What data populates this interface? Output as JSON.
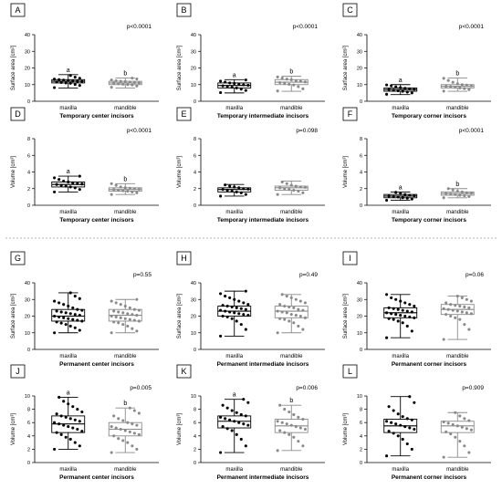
{
  "chart_data": [
    {
      "type": "box",
      "panel": "A",
      "xlabel": "Temporary center incisors",
      "ylabel": "Surface area [cm²]",
      "ylim": [
        0,
        40
      ],
      "yticks": [
        0,
        10,
        20,
        30,
        40
      ],
      "p_value": "p<0.0001",
      "categories": [
        "maxilla",
        "mandible"
      ],
      "series": [
        {
          "category": "maxilla",
          "letter": "a",
          "color": "#000000",
          "min": 8,
          "q1": 11,
          "median": 12,
          "q3": 13,
          "max": 16,
          "points": [
            8.2,
            9.5,
            10.1,
            10.8,
            11,
            11.3,
            11.6,
            11.9,
            12,
            12.2,
            12.4,
            12.7,
            13,
            13.3,
            13.8,
            14.5,
            15.5
          ]
        },
        {
          "category": "mandible",
          "letter": "b",
          "color": "#8a8a8a",
          "min": 8,
          "q1": 10,
          "median": 11,
          "q3": 12,
          "max": 14,
          "points": [
            8.4,
            9.2,
            9.8,
            10,
            10.3,
            10.6,
            10.9,
            11,
            11.2,
            11.5,
            11.8,
            12,
            12.3,
            12.8,
            13.4,
            13.9
          ]
        }
      ]
    },
    {
      "type": "box",
      "panel": "B",
      "xlabel": "Temporary intermediate incisors",
      "ylabel": "Surface area [cm²]",
      "ylim": [
        0,
        40
      ],
      "yticks": [
        0,
        10,
        20,
        30,
        40
      ],
      "p_value": "p<0.0001",
      "categories": [
        "maxilla",
        "mandible"
      ],
      "series": [
        {
          "category": "maxilla",
          "letter": "a",
          "color": "#000000",
          "min": 5,
          "q1": 8,
          "median": 9.5,
          "q3": 11,
          "max": 13,
          "points": [
            5.2,
            6.5,
            7.3,
            8,
            8.4,
            8.9,
            9.3,
            9.6,
            9.9,
            10.3,
            10.7,
            11,
            11.5,
            12.1,
            12.8
          ]
        },
        {
          "category": "mandible",
          "letter": "b",
          "color": "#8a8a8a",
          "min": 6,
          "q1": 10,
          "median": 11.5,
          "q3": 13,
          "max": 15,
          "points": [
            6.2,
            7.5,
            8.8,
            9.8,
            10.2,
            10.8,
            11.2,
            11.6,
            12,
            12.4,
            12.9,
            13.3,
            13.9,
            14.6
          ]
        }
      ]
    },
    {
      "type": "box",
      "panel": "C",
      "xlabel": "Temporary corner incisors",
      "ylabel": "Surface area [cm²]",
      "ylim": [
        0,
        40
      ],
      "yticks": [
        0,
        10,
        20,
        30,
        40
      ],
      "p_value": "p<0.0001",
      "categories": [
        "maxilla",
        "mandible"
      ],
      "series": [
        {
          "category": "maxilla",
          "letter": "a",
          "color": "#000000",
          "min": 4,
          "q1": 6,
          "median": 7,
          "q3": 8,
          "max": 10,
          "points": [
            4.2,
            5,
            5.5,
            6,
            6.3,
            6.7,
            7,
            7.2,
            7.5,
            7.8,
            8.2,
            8.7,
            9.3,
            9.8
          ]
        },
        {
          "category": "mandible",
          "letter": "b",
          "color": "#8a8a8a",
          "min": 6,
          "q1": 8,
          "median": 9,
          "q3": 10,
          "max": 14,
          "points": [
            6.1,
            7,
            7.6,
            8,
            8.4,
            8.8,
            9,
            9.3,
            9.7,
            10,
            10.5,
            11.4,
            12.5,
            13.8
          ]
        }
      ]
    },
    {
      "type": "box",
      "panel": "D",
      "xlabel": "Temporary center incisors",
      "ylabel": "Volume [cm³]",
      "ylim": [
        0,
        8
      ],
      "yticks": [
        0,
        2,
        4,
        6,
        8
      ],
      "p_value": "p<0.0001",
      "categories": [
        "maxilla",
        "mandible"
      ],
      "series": [
        {
          "category": "maxilla",
          "letter": "a",
          "color": "#000000",
          "min": 1.6,
          "q1": 2.2,
          "median": 2.5,
          "q3": 2.8,
          "max": 3.5,
          "points": [
            1.6,
            1.9,
            2.1,
            2.2,
            2.3,
            2.4,
            2.5,
            2.55,
            2.6,
            2.7,
            2.8,
            2.9,
            3.1,
            3.3,
            3.5
          ]
        },
        {
          "category": "mandible",
          "letter": "b",
          "color": "#8a8a8a",
          "min": 1.3,
          "q1": 1.7,
          "median": 1.9,
          "q3": 2.1,
          "max": 2.6,
          "points": [
            1.3,
            1.5,
            1.6,
            1.7,
            1.75,
            1.8,
            1.9,
            1.95,
            2,
            2.05,
            2.1,
            2.2,
            2.4,
            2.6
          ]
        }
      ]
    },
    {
      "type": "box",
      "panel": "E",
      "xlabel": "Temporary intermediate incisors",
      "ylabel": "Volume [cm³]",
      "ylim": [
        0,
        8
      ],
      "yticks": [
        0,
        2,
        4,
        6,
        8
      ],
      "p_value": "p=0.098",
      "categories": [
        "maxilla",
        "mandible"
      ],
      "series": [
        {
          "category": "maxilla",
          "letter": "",
          "color": "#000000",
          "min": 1.1,
          "q1": 1.6,
          "median": 1.9,
          "q3": 2.1,
          "max": 2.5,
          "points": [
            1.1,
            1.3,
            1.5,
            1.6,
            1.7,
            1.8,
            1.9,
            1.95,
            2,
            2.1,
            2.2,
            2.3,
            2.45
          ]
        },
        {
          "category": "mandible",
          "letter": "",
          "color": "#8a8a8a",
          "min": 1.3,
          "q1": 1.8,
          "median": 2.1,
          "q3": 2.3,
          "max": 2.9,
          "points": [
            1.3,
            1.5,
            1.7,
            1.8,
            1.9,
            2,
            2.1,
            2.15,
            2.2,
            2.3,
            2.4,
            2.6,
            2.8
          ]
        }
      ]
    },
    {
      "type": "box",
      "panel": "F",
      "xlabel": "Temporary corner incisors",
      "ylabel": "Volume [cm³]",
      "ylim": [
        0,
        8
      ],
      "yticks": [
        0,
        2,
        4,
        6,
        8
      ],
      "p_value": "p<0.0001",
      "categories": [
        "maxilla",
        "mandible"
      ],
      "series": [
        {
          "category": "maxilla",
          "letter": "a",
          "color": "#000000",
          "min": 0.6,
          "q1": 0.9,
          "median": 1.1,
          "q3": 1.3,
          "max": 1.6,
          "points": [
            0.6,
            0.75,
            0.85,
            0.9,
            1,
            1.05,
            1.1,
            1.15,
            1.2,
            1.3,
            1.4,
            1.55
          ]
        },
        {
          "category": "mandible",
          "letter": "b",
          "color": "#8a8a8a",
          "min": 0.9,
          "q1": 1.2,
          "median": 1.4,
          "q3": 1.6,
          "max": 2,
          "points": [
            0.9,
            1.05,
            1.15,
            1.2,
            1.3,
            1.35,
            1.4,
            1.45,
            1.5,
            1.6,
            1.7,
            1.85,
            2
          ]
        }
      ]
    },
    {
      "type": "box",
      "panel": "G",
      "xlabel": "Permanent center incisors",
      "ylabel": "Surface area [cm²]",
      "ylim": [
        0,
        40
      ],
      "yticks": [
        0,
        10,
        20,
        30,
        40
      ],
      "p_value": "p=0.55",
      "categories": [
        "maxilla",
        "mandible"
      ],
      "series": [
        {
          "category": "maxilla",
          "letter": "",
          "color": "#000000",
          "min": 10,
          "q1": 17,
          "median": 20,
          "q3": 24,
          "max": 34,
          "points": [
            10,
            11.5,
            13,
            14,
            15,
            15.8,
            16.5,
            17,
            17.5,
            18,
            18.5,
            19,
            19.5,
            20,
            20.5,
            21,
            21.5,
            22,
            22.5,
            23,
            23.5,
            24,
            25,
            26,
            27,
            28,
            29,
            30.5,
            32,
            34
          ]
        },
        {
          "category": "mandible",
          "letter": "",
          "color": "#8a8a8a",
          "min": 10,
          "q1": 17,
          "median": 20.5,
          "q3": 24,
          "max": 30,
          "points": [
            10,
            11,
            12.5,
            14,
            15,
            16,
            16.5,
            17,
            17.5,
            18,
            18.5,
            19,
            19.5,
            20,
            20.5,
            21,
            21.5,
            22,
            22.5,
            23,
            23.5,
            24,
            25,
            26,
            27,
            28,
            29,
            30
          ]
        }
      ]
    },
    {
      "type": "box",
      "panel": "H",
      "xlabel": "Permanent intermediate incisors",
      "ylabel": "Surface area [cm²]",
      "ylim": [
        0,
        40
      ],
      "yticks": [
        0,
        10,
        20,
        30,
        40
      ],
      "p_value": "p=0.49",
      "categories": [
        "maxilla",
        "mandible"
      ],
      "series": [
        {
          "category": "maxilla",
          "letter": "",
          "color": "#000000",
          "min": 8,
          "q1": 20,
          "median": 23,
          "q3": 26,
          "max": 35,
          "points": [
            8,
            12,
            15,
            17,
            18.5,
            19.5,
            20,
            20.5,
            21,
            21.5,
            22,
            22.5,
            23,
            23.5,
            24,
            24.5,
            25,
            25.5,
            26,
            26.5,
            27,
            28,
            29,
            30,
            31,
            32,
            33.5,
            35
          ]
        },
        {
          "category": "mandible",
          "letter": "",
          "color": "#8a8a8a",
          "min": 10,
          "q1": 19,
          "median": 23,
          "q3": 26,
          "max": 33,
          "points": [
            10,
            12,
            14,
            16,
            17,
            18,
            18.5,
            19,
            20,
            20.5,
            21,
            22,
            22.5,
            23,
            23.5,
            24,
            25,
            25.5,
            26,
            27,
            28,
            29,
            30,
            31,
            32,
            33
          ]
        }
      ]
    },
    {
      "type": "box",
      "panel": "I",
      "xlabel": "Permanent corner incisors",
      "ylabel": "Surface area [cm²]",
      "ylim": [
        0,
        40
      ],
      "yticks": [
        0,
        10,
        20,
        30,
        40
      ],
      "p_value": "p=0.06",
      "categories": [
        "maxilla",
        "mandible"
      ],
      "series": [
        {
          "category": "maxilla",
          "letter": "",
          "color": "#000000",
          "min": 7,
          "q1": 19,
          "median": 22,
          "q3": 25,
          "max": 33,
          "points": [
            7,
            11,
            14,
            16,
            17,
            18,
            18.5,
            19,
            19.5,
            20,
            20.5,
            21,
            21.5,
            22,
            22.5,
            23,
            23.5,
            24,
            24.5,
            25,
            26,
            27,
            28,
            29,
            30,
            31,
            33
          ]
        },
        {
          "category": "mandible",
          "letter": "",
          "color": "#8a8a8a",
          "min": 6,
          "q1": 21,
          "median": 24,
          "q3": 27,
          "max": 32,
          "points": [
            6,
            12,
            15,
            18,
            19,
            20,
            21,
            21.5,
            22,
            22.5,
            23,
            23.5,
            24,
            24.5,
            25,
            25.5,
            26,
            26.5,
            27,
            28,
            29,
            30,
            31,
            32
          ]
        }
      ]
    },
    {
      "type": "box",
      "panel": "J",
      "xlabel": "Permanent center incisors",
      "ylabel": "Volume [cm³]",
      "ylim": [
        0,
        10
      ],
      "yticks": [
        0,
        2,
        4,
        6,
        8,
        10
      ],
      "p_value": "p=0.005",
      "categories": [
        "maxilla",
        "mandible"
      ],
      "series": [
        {
          "category": "maxilla",
          "letter": "a",
          "color": "#000000",
          "min": 2,
          "q1": 4.5,
          "median": 5.8,
          "q3": 7,
          "max": 9.8,
          "points": [
            2,
            2.5,
            3,
            3.5,
            3.8,
            4.2,
            4.5,
            4.7,
            5,
            5.2,
            5.4,
            5.6,
            5.8,
            6,
            6.2,
            6.4,
            6.6,
            6.8,
            7,
            7.3,
            7.6,
            8,
            8.4,
            8.8,
            9.2,
            9.8
          ]
        },
        {
          "category": "mandible",
          "letter": "b",
          "color": "#8a8a8a",
          "min": 1.5,
          "q1": 4,
          "median": 5,
          "q3": 6,
          "max": 8.2,
          "points": [
            1.5,
            2,
            2.5,
            3,
            3.3,
            3.6,
            4,
            4.2,
            4.4,
            4.6,
            4.8,
            5,
            5.2,
            5.4,
            5.6,
            5.8,
            6,
            6.3,
            6.6,
            7,
            7.4,
            7.8,
            8.2
          ]
        }
      ]
    },
    {
      "type": "box",
      "panel": "K",
      "xlabel": "Permanent intermediate incisors",
      "ylabel": "Volume [cm³]",
      "ylim": [
        0,
        10
      ],
      "yticks": [
        0,
        2,
        4,
        6,
        8,
        10
      ],
      "p_value": "p=0.006",
      "categories": [
        "maxilla",
        "mandible"
      ],
      "series": [
        {
          "category": "maxilla",
          "letter": "a",
          "color": "#000000",
          "min": 1.5,
          "q1": 5.2,
          "median": 6.2,
          "q3": 7,
          "max": 9.5,
          "points": [
            1.5,
            2.5,
            3.5,
            4.2,
            4.8,
            5.1,
            5.4,
            5.6,
            5.8,
            6,
            6.2,
            6.4,
            6.6,
            6.8,
            7,
            7.2,
            7.5,
            7.8,
            8.2,
            8.6,
            9,
            9.5
          ]
        },
        {
          "category": "mandible",
          "letter": "b",
          "color": "#8a8a8a",
          "min": 1.8,
          "q1": 4.5,
          "median": 5.5,
          "q3": 6.5,
          "max": 8.6,
          "points": [
            1.8,
            2.5,
            3.2,
            3.8,
            4.2,
            4.5,
            4.8,
            5,
            5.2,
            5.4,
            5.6,
            5.8,
            6,
            6.2,
            6.5,
            6.8,
            7.2,
            7.6,
            8,
            8.6
          ]
        }
      ]
    },
    {
      "type": "box",
      "panel": "L",
      "xlabel": "Permanent corner incisors",
      "ylabel": "Volume [cm³]",
      "ylim": [
        0,
        10
      ],
      "yticks": [
        0,
        2,
        4,
        6,
        8,
        10
      ],
      "p_value": "p=0.909",
      "categories": [
        "maxilla",
        "mandible"
      ],
      "series": [
        {
          "category": "maxilla",
          "letter": "",
          "color": "#000000",
          "min": 1,
          "q1": 4.5,
          "median": 5.5,
          "q3": 6.5,
          "max": 9.9,
          "points": [
            1,
            2,
            2.8,
            3.5,
            4,
            4.4,
            4.7,
            5,
            5.2,
            5.4,
            5.6,
            5.8,
            6,
            6.2,
            6.4,
            6.6,
            6.9,
            7.3,
            7.8,
            8.4,
            9,
            9.9
          ]
        },
        {
          "category": "mandible",
          "letter": "",
          "color": "#8a8a8a",
          "min": 0.8,
          "q1": 4.5,
          "median": 5.5,
          "q3": 6.2,
          "max": 7.5,
          "points": [
            0.8,
            1.5,
            2.5,
            3.2,
            3.8,
            4.3,
            4.6,
            4.9,
            5.1,
            5.3,
            5.5,
            5.7,
            5.9,
            6.1,
            6.3,
            6.6,
            7,
            7.5
          ]
        }
      ]
    }
  ]
}
